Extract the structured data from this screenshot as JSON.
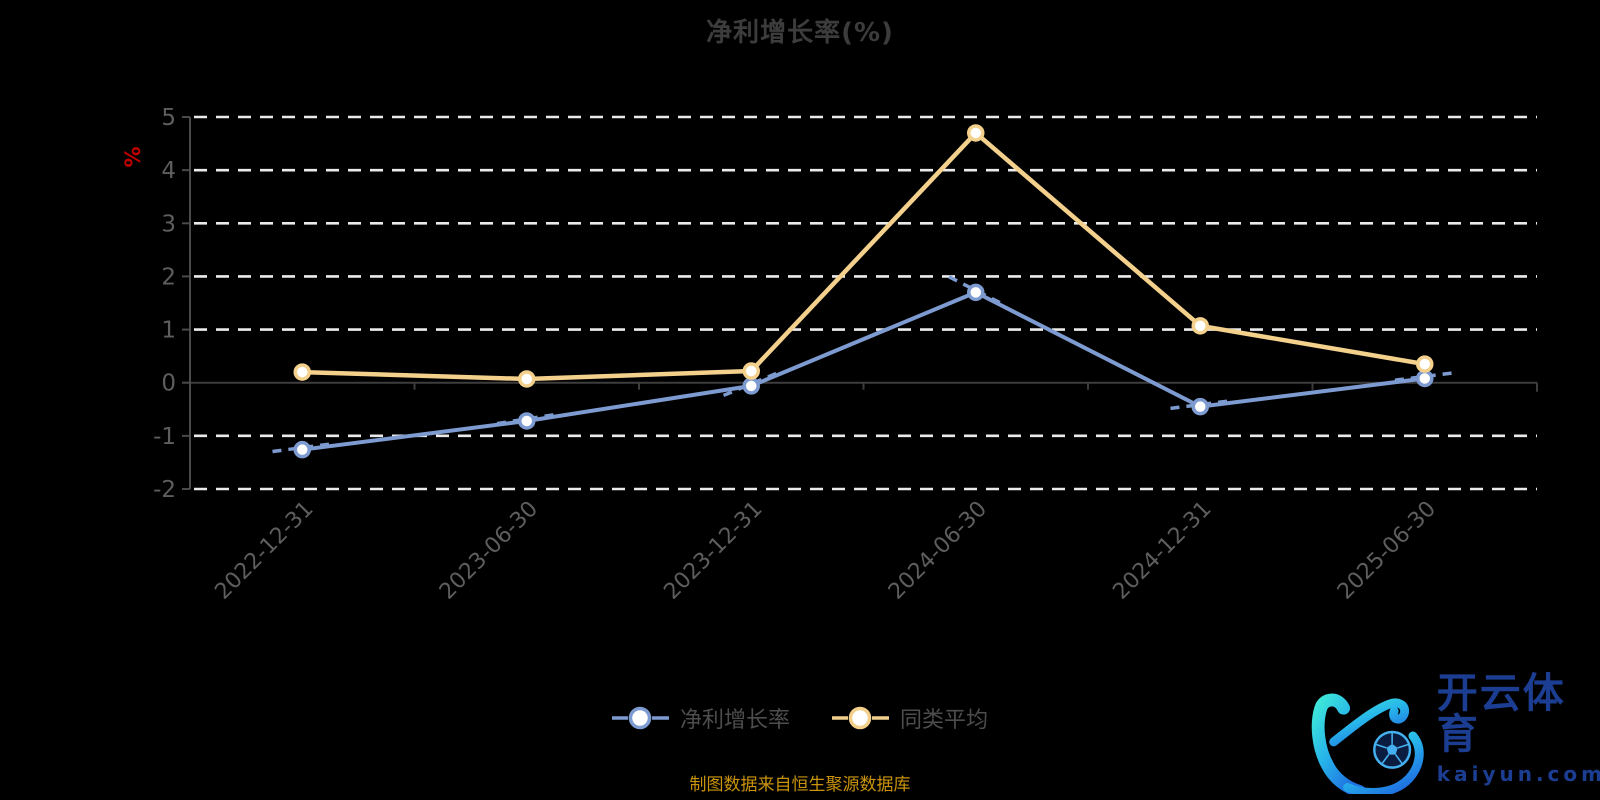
{
  "title": "净利增长率(%)",
  "y_axis_name": "%",
  "source_note": "制图数据来自恒生聚源数据库",
  "watermark": {
    "brand": "开云体育",
    "domain": "kaiyun.com"
  },
  "colors": {
    "background": "#000000",
    "title_text": "#3c3c3c",
    "series_blue": "#7d9bd0",
    "series_yellow": "#f3d08c",
    "grid_line": "#eaeaea",
    "zero_axis_line": "#3d3d3d",
    "axis_line": "#4a4a4a",
    "tick_label": "#5e5e5e",
    "legend_text": "#4d4d4d",
    "y_name_red": "#c00000",
    "source_gold": "#c9940b",
    "logo_text_blue": "#1c3e92"
  },
  "legend": {
    "items": [
      {
        "label": "净利增长率"
      },
      {
        "label": "同类平均"
      }
    ]
  },
  "chart_data": {
    "type": "line",
    "title": "净利增长率(%)",
    "ylabel": "%",
    "xlabel": "",
    "categories": [
      "2022-12-31",
      "2023-06-30",
      "2023-12-31",
      "2024-06-30",
      "2024-12-31",
      "2025-06-30"
    ],
    "series": [
      {
        "name": "净利增长率",
        "color": "#7d9bd0",
        "values": [
          -1.26,
          -0.72,
          -0.06,
          1.7,
          -0.45,
          0.08
        ],
        "near_point_dashes": true
      },
      {
        "name": "同类平均",
        "color": "#f3d08c",
        "values": [
          0.2,
          0.07,
          0.22,
          4.7,
          1.07,
          0.35
        ]
      }
    ],
    "ylim": [
      -2,
      5
    ],
    "y_ticks": [
      5,
      4,
      3,
      2,
      1,
      0,
      -1,
      -2
    ],
    "grid": "horizontal-dashed-white",
    "legend_position": "bottom",
    "marker": "circle-white-fill"
  }
}
